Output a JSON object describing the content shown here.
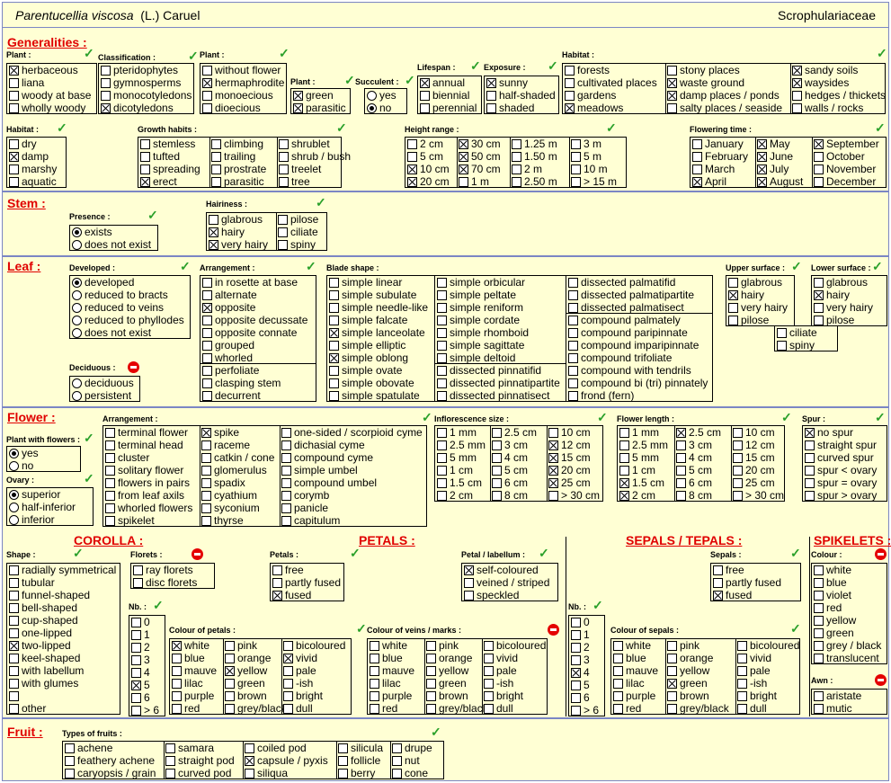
{
  "header": {
    "species": "Parentucellia viscosa",
    "author": "(L.) Caruel",
    "family": "Scrophulariaceae"
  },
  "sections": {
    "generalities": "Generalities :",
    "stem": "Stem :",
    "leaf": "Leaf :",
    "flower": "Flower :",
    "fruit": "Fruit :"
  },
  "labels": {
    "plant": "Plant :",
    "classification": "Classification :",
    "plant2": "Plant :",
    "plant3": "Plant :",
    "succulent": "Succulent :",
    "lifespan": "Lifespan :",
    "exposure": "Exposure :",
    "habitat": "Habitat :",
    "habitat2": "Habitat :",
    "growth": "Growth habits :",
    "height": "Height range :",
    "flowering": "Flowering time :",
    "presence": "Presence :",
    "hairiness": "Hairiness :",
    "developed": "Developed :",
    "arrangement": "Arrangement :",
    "blade": "Blade shape :",
    "upper": "Upper surface :",
    "lower": "Lower surface :",
    "deciduous": "Deciduous :",
    "farr": "Arrangement :",
    "inflo": "Inflorescence size :",
    "flen": "Flower length :",
    "spur": "Spur :",
    "pwf": "Plant with flowers :",
    "ovary": "Ovary :",
    "shape": "Shape :",
    "florets": "Florets :",
    "petals": "Petals :",
    "labellum": "Petal / labellum :",
    "nb": "Nb. :",
    "cpet": "Colour of petals :",
    "cveins": "Colour of veins / marks :",
    "nb2": "Nb. :",
    "sepals": "Sepals :",
    "csep": "Colour of sepals :",
    "colour": "Colour :",
    "awn": "Awn :",
    "tfruits": "Types of fruits :"
  },
  "subsections": {
    "corolla": "COROLLA :",
    "petals": "PETALS :",
    "sepals": "SEPALS / TEPALS :",
    "spikelets": "SPIKELETS :"
  },
  "groups": {
    "plant": [
      [
        "herbaceous",
        1
      ],
      [
        "liana",
        0
      ],
      [
        "woody at base",
        0
      ],
      [
        "wholly woody",
        0
      ]
    ],
    "classification": [
      [
        "pteridophytes",
        0
      ],
      [
        "gymnosperms",
        0
      ],
      [
        "monocotyledons",
        0
      ],
      [
        "dicotyledons",
        1
      ]
    ],
    "plant2": [
      [
        "without flower",
        0
      ],
      [
        "hermaphrodite",
        1
      ],
      [
        "monoecious",
        0
      ],
      [
        "dioecious",
        0
      ]
    ],
    "plant3": [
      [
        "green",
        1
      ],
      [
        "parasitic",
        1
      ]
    ],
    "succulent": [
      [
        "yes",
        0
      ],
      [
        "no",
        1
      ]
    ],
    "lifespan": [
      [
        "annual",
        1
      ],
      [
        "biennial",
        0
      ],
      [
        "perennial",
        0
      ]
    ],
    "exposure": [
      [
        "sunny",
        1
      ],
      [
        "half-shaded",
        0
      ],
      [
        "shaded",
        0
      ]
    ],
    "habitat_a": [
      [
        "forests",
        0
      ],
      [
        "cultivated places",
        0
      ],
      [
        "gardens",
        0
      ],
      [
        "meadows",
        1
      ]
    ],
    "habitat_b": [
      [
        "stony places",
        0
      ],
      [
        "waste ground",
        1
      ],
      [
        "damp places / ponds",
        1
      ],
      [
        "salty places / seaside",
        0
      ]
    ],
    "habitat_c": [
      [
        "sandy soils",
        1
      ],
      [
        "waysides",
        1
      ],
      [
        "hedges / thickets",
        0
      ],
      [
        "walls / rocks",
        0
      ]
    ],
    "habitat2": [
      [
        "dry",
        0
      ],
      [
        "damp",
        1
      ],
      [
        "marshy",
        0
      ],
      [
        "aquatic",
        0
      ]
    ],
    "growth_a": [
      [
        "stemless",
        0
      ],
      [
        "tufted",
        0
      ],
      [
        "spreading",
        0
      ],
      [
        "erect",
        1
      ]
    ],
    "growth_b": [
      [
        "climbing",
        0
      ],
      [
        "trailing",
        0
      ],
      [
        "prostrate",
        0
      ],
      [
        "parasitic",
        0
      ]
    ],
    "growth_c": [
      [
        "shrublet",
        0
      ],
      [
        "shrub / bush",
        0
      ],
      [
        "treelet",
        0
      ],
      [
        "tree",
        0
      ]
    ],
    "height_a": [
      [
        "2 cm",
        0
      ],
      [
        "5 cm",
        0
      ],
      [
        "10 cm",
        1
      ],
      [
        "20 cm",
        1
      ]
    ],
    "height_b": [
      [
        "30 cm",
        1
      ],
      [
        "50 cm",
        1
      ],
      [
        "70 cm",
        1
      ],
      [
        "1 m",
        0
      ]
    ],
    "height_c": [
      [
        "1.25 m",
        0
      ],
      [
        "1.50 m",
        0
      ],
      [
        "2 m",
        0
      ],
      [
        "2.50 m",
        0
      ]
    ],
    "height_d": [
      [
        "3 m",
        0
      ],
      [
        "5 m",
        0
      ],
      [
        "10 m",
        0
      ],
      [
        "> 15 m",
        0
      ]
    ],
    "flow_a": [
      [
        "January",
        0
      ],
      [
        "February",
        0
      ],
      [
        "March",
        0
      ],
      [
        "April",
        1
      ]
    ],
    "flow_b": [
      [
        "May",
        1
      ],
      [
        "June",
        1
      ],
      [
        "July",
        1
      ],
      [
        "August",
        1
      ]
    ],
    "flow_c": [
      [
        "September",
        1
      ],
      [
        "October",
        0
      ],
      [
        "November",
        0
      ],
      [
        "December",
        0
      ]
    ],
    "presence": [
      [
        "exists",
        1
      ],
      [
        "does not exist",
        0
      ]
    ],
    "hair_a": [
      [
        "glabrous",
        0
      ],
      [
        "hairy",
        1
      ],
      [
        "very hairy",
        1
      ]
    ],
    "hair_b": [
      [
        "pilose",
        0
      ],
      [
        "ciliate",
        0
      ],
      [
        "spiny",
        0
      ]
    ],
    "developed": [
      [
        "developed",
        1
      ],
      [
        "reduced to bracts",
        0
      ],
      [
        "reduced to veins",
        0
      ],
      [
        "reduced to phyllodes",
        0
      ],
      [
        "does not exist",
        0
      ]
    ],
    "deciduous": [
      [
        "deciduous",
        0
      ],
      [
        "persistent",
        0
      ]
    ],
    "arr_a": [
      [
        "in rosette at base",
        0
      ],
      [
        "alternate",
        0
      ],
      [
        "opposite",
        1
      ],
      [
        "opposite decussate",
        0
      ],
      [
        "opposite connate",
        0
      ],
      [
        "grouped",
        0
      ],
      [
        "whorled",
        0
      ]
    ],
    "arr_b": [
      [
        "perfoliate",
        0
      ],
      [
        "clasping stem",
        0
      ],
      [
        "decurrent",
        0
      ]
    ],
    "blade_a": [
      [
        "simple linear",
        0
      ],
      [
        "simple subulate",
        0
      ],
      [
        "simple needle-like",
        0
      ],
      [
        "simple falcate",
        0
      ],
      [
        "simple lanceolate",
        1
      ],
      [
        "simple elliptic",
        0
      ],
      [
        "simple oblong",
        1
      ],
      [
        "simple ovate",
        0
      ],
      [
        "simple obovate",
        0
      ],
      [
        "simple spatulate",
        0
      ]
    ],
    "blade_b": [
      [
        "simple orbicular",
        0
      ],
      [
        "simple peltate",
        0
      ],
      [
        "simple reniform",
        0
      ],
      [
        "simple cordate",
        0
      ],
      [
        "simple rhomboid",
        0
      ],
      [
        "simple sagittate",
        0
      ],
      [
        "simple deltoid",
        0
      ]
    ],
    "blade_c": [
      [
        "dissected pinnatifid",
        0
      ],
      [
        "dissected pinnatipartite",
        0
      ],
      [
        "dissected pinnatisect",
        0
      ]
    ],
    "blade_d": [
      [
        "dissected palmatifid",
        0
      ],
      [
        "dissected palmatipartite",
        0
      ],
      [
        "dissected palmatisect",
        0
      ]
    ],
    "blade_e": [
      [
        "compound palmately",
        0
      ],
      [
        "compound paripinnate",
        0
      ],
      [
        "compound imparipinnate",
        0
      ],
      [
        "compound trifoliate",
        0
      ],
      [
        "compound with tendrils",
        0
      ],
      [
        "compound bi (tri) pinnately",
        0
      ],
      [
        "frond  (fern)",
        0
      ]
    ],
    "upper": [
      [
        "glabrous",
        0
      ],
      [
        "hairy",
        1
      ],
      [
        "very hairy",
        0
      ],
      [
        "pilose",
        0
      ]
    ],
    "lower": [
      [
        "glabrous",
        0
      ],
      [
        "hairy",
        1
      ],
      [
        "very hairy",
        0
      ],
      [
        "pilose",
        0
      ]
    ],
    "upperlower2": [
      [
        "ciliate",
        0
      ],
      [
        "spiny",
        0
      ]
    ],
    "pwf": [
      [
        "yes",
        1
      ],
      [
        "no",
        0
      ]
    ],
    "ovary": [
      [
        "superior",
        1
      ],
      [
        "half-inferior",
        0
      ],
      [
        "inferior",
        0
      ]
    ],
    "farr_a": [
      [
        "terminal flower",
        0
      ],
      [
        "terminal head",
        0
      ],
      [
        "cluster",
        0
      ],
      [
        "solitary flower",
        0
      ],
      [
        "flowers in pairs",
        0
      ],
      [
        "from leaf axils",
        0
      ],
      [
        "whorled flowers",
        0
      ],
      [
        "spikelet",
        0
      ]
    ],
    "farr_b": [
      [
        "spike",
        1
      ],
      [
        "raceme",
        0
      ],
      [
        "catkin / cone",
        0
      ],
      [
        "glomerulus",
        0
      ],
      [
        "spadix",
        0
      ],
      [
        "cyathium",
        0
      ],
      [
        "syconium",
        0
      ],
      [
        "thyrse",
        0
      ]
    ],
    "farr_c": [
      [
        "one-sided / scorpioid cyme",
        0
      ],
      [
        "dichasial cyme",
        0
      ],
      [
        "compound cyme",
        0
      ],
      [
        "simple umbel",
        0
      ],
      [
        "compound umbel",
        0
      ],
      [
        "corymb",
        0
      ],
      [
        "panicle",
        0
      ],
      [
        "capitulum",
        0
      ]
    ],
    "inf_a": [
      [
        "1 mm",
        0
      ],
      [
        "2.5 mm",
        0
      ],
      [
        "5 mm",
        0
      ],
      [
        "1 cm",
        0
      ],
      [
        "1.5 cm",
        0
      ],
      [
        "2 cm",
        0
      ]
    ],
    "inf_b": [
      [
        "2.5 cm",
        0
      ],
      [
        "3 cm",
        0
      ],
      [
        "4 cm",
        0
      ],
      [
        "5 cm",
        0
      ],
      [
        "6 cm",
        0
      ],
      [
        "8 cm",
        0
      ]
    ],
    "inf_c": [
      [
        "10 cm",
        0
      ],
      [
        "12 cm",
        1
      ],
      [
        "15 cm",
        1
      ],
      [
        "20 cm",
        1
      ],
      [
        "25 cm",
        1
      ],
      [
        "> 30 cm",
        0
      ]
    ],
    "fl_a": [
      [
        "1 mm",
        0
      ],
      [
        "2.5 mm",
        0
      ],
      [
        "5 mm",
        0
      ],
      [
        "1 cm",
        0
      ],
      [
        "1.5 cm",
        1
      ],
      [
        "2 cm",
        1
      ]
    ],
    "fl_b": [
      [
        "2.5 cm",
        1
      ],
      [
        "3 cm",
        0
      ],
      [
        "4 cm",
        0
      ],
      [
        "5 cm",
        0
      ],
      [
        "6 cm",
        0
      ],
      [
        "8 cm",
        0
      ]
    ],
    "fl_c": [
      [
        "10 cm",
        0
      ],
      [
        "12 cm",
        0
      ],
      [
        "15 cm",
        0
      ],
      [
        "20 cm",
        0
      ],
      [
        "25 cm",
        0
      ],
      [
        "> 30 cm",
        0
      ]
    ],
    "spur": [
      [
        "no spur",
        1
      ],
      [
        "straight spur",
        0
      ],
      [
        "curved spur",
        0
      ],
      [
        "spur < ovary",
        0
      ],
      [
        "spur = ovary",
        0
      ],
      [
        "spur > ovary",
        0
      ]
    ],
    "shape": [
      [
        "radially symmetrical",
        0
      ],
      [
        "tubular",
        0
      ],
      [
        "funnel-shaped",
        0
      ],
      [
        "bell-shaped",
        0
      ],
      [
        "cup-shaped",
        0
      ],
      [
        "one-lipped",
        0
      ],
      [
        "two-lipped",
        1
      ],
      [
        "keel-shaped",
        0
      ],
      [
        "with labellum",
        0
      ],
      [
        "with glumes",
        0
      ],
      [
        "",
        0
      ],
      [
        "other",
        0
      ]
    ],
    "florets": [
      [
        "ray florets",
        0
      ],
      [
        "disc florets",
        0
      ]
    ],
    "petals": [
      [
        "free",
        0
      ],
      [
        "partly fused",
        0
      ],
      [
        "fused",
        1
      ]
    ],
    "labellum": [
      [
        "self-coloured",
        1
      ],
      [
        "veined / striped",
        0
      ],
      [
        "speckled",
        0
      ]
    ],
    "nb": [
      [
        "0",
        0
      ],
      [
        "1",
        0
      ],
      [
        "2",
        0
      ],
      [
        "3",
        0
      ],
      [
        "4",
        0
      ],
      [
        "5",
        1
      ],
      [
        "6",
        0
      ],
      [
        "> 6",
        0
      ]
    ],
    "cp_a": [
      [
        "white",
        1
      ],
      [
        "blue",
        0
      ],
      [
        "mauve",
        0
      ],
      [
        "lilac",
        0
      ],
      [
        "purple",
        0
      ],
      [
        "red",
        0
      ]
    ],
    "cp_b": [
      [
        "pink",
        0
      ],
      [
        "orange",
        0
      ],
      [
        "yellow",
        1
      ],
      [
        "green",
        0
      ],
      [
        "brown",
        0
      ],
      [
        "grey/black",
        0
      ]
    ],
    "cp_c": [
      [
        "bicoloured",
        0
      ],
      [
        "vivid",
        1
      ],
      [
        "pale",
        0
      ],
      [
        "-ish",
        0
      ],
      [
        "bright",
        0
      ],
      [
        "dull",
        0
      ]
    ],
    "cv_a": [
      [
        "white",
        0
      ],
      [
        "blue",
        0
      ],
      [
        "mauve",
        0
      ],
      [
        "lilac",
        0
      ],
      [
        "purple",
        0
      ],
      [
        "red",
        0
      ]
    ],
    "cv_b": [
      [
        "pink",
        0
      ],
      [
        "orange",
        0
      ],
      [
        "yellow",
        0
      ],
      [
        "green",
        0
      ],
      [
        "brown",
        0
      ],
      [
        "grey/black",
        0
      ]
    ],
    "cv_c": [
      [
        "bicoloured",
        0
      ],
      [
        "vivid",
        0
      ],
      [
        "pale",
        0
      ],
      [
        "-ish",
        0
      ],
      [
        "bright",
        0
      ],
      [
        "dull",
        0
      ]
    ],
    "nb2": [
      [
        "0",
        0
      ],
      [
        "1",
        0
      ],
      [
        "2",
        0
      ],
      [
        "3",
        0
      ],
      [
        "4",
        1
      ],
      [
        "5",
        0
      ],
      [
        "6",
        0
      ],
      [
        "> 6",
        0
      ]
    ],
    "sepals": [
      [
        "free",
        0
      ],
      [
        "partly fused",
        0
      ],
      [
        "fused",
        1
      ]
    ],
    "cs_a": [
      [
        "white",
        0
      ],
      [
        "blue",
        0
      ],
      [
        "mauve",
        0
      ],
      [
        "lilac",
        0
      ],
      [
        "purple",
        0
      ],
      [
        "red",
        0
      ]
    ],
    "cs_b": [
      [
        "pink",
        0
      ],
      [
        "orange",
        0
      ],
      [
        "yellow",
        0
      ],
      [
        "green",
        1
      ],
      [
        "brown",
        0
      ],
      [
        "grey/black",
        0
      ]
    ],
    "cs_c": [
      [
        "bicoloured",
        0
      ],
      [
        "vivid",
        0
      ],
      [
        "pale",
        0
      ],
      [
        "-ish",
        0
      ],
      [
        "bright",
        0
      ],
      [
        "dull",
        0
      ]
    ],
    "colour": [
      [
        "white",
        0
      ],
      [
        "blue",
        0
      ],
      [
        "violet",
        0
      ],
      [
        "red",
        0
      ],
      [
        "yellow",
        0
      ],
      [
        "green",
        0
      ],
      [
        "grey / black",
        0
      ],
      [
        "translucent",
        0
      ]
    ],
    "awn": [
      [
        "aristate",
        0
      ],
      [
        "mutic",
        0
      ]
    ],
    "fr_a": [
      [
        "achene",
        0
      ],
      [
        "feathery achene",
        0
      ],
      [
        "caryopsis / grain",
        0
      ]
    ],
    "fr_b": [
      [
        "samara",
        0
      ],
      [
        "straight pod",
        0
      ],
      [
        "curved pod",
        0
      ]
    ],
    "fr_c": [
      [
        "coiled pod",
        0
      ],
      [
        "capsule / pyxis",
        1
      ],
      [
        "siliqua",
        0
      ]
    ],
    "fr_d": [
      [
        "silicula",
        0
      ],
      [
        "follicle",
        0
      ],
      [
        "berry",
        0
      ]
    ],
    "fr_e": [
      [
        "drupe",
        0
      ],
      [
        "nut",
        0
      ],
      [
        "cone",
        0
      ]
    ]
  },
  "colors": {
    "accent_red": "#e00000",
    "check_green": "#2aa02a",
    "border_blue": "#7b86c4",
    "background": "#ffffd4"
  }
}
